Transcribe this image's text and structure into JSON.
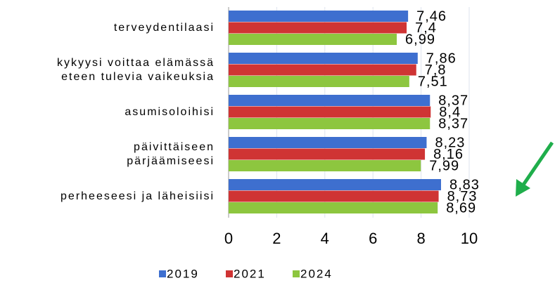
{
  "chart_data": {
    "type": "hbar",
    "categories": [
      "terveydentilaasi",
      "kykyysi voittaa elämässä\neteen tulevia vaikeuksia",
      "asumisoloihisi",
      "päivittäiseen\npärjäämiseesi",
      "perheeseesi ja läheisiisi"
    ],
    "series": [
      {
        "name": "2019",
        "color": "#3e6fcf",
        "values": [
          7.46,
          7.86,
          8.37,
          8.23,
          8.83
        ],
        "value_labels": [
          "7,46",
          "7,86",
          "8,37",
          "8,23",
          "8,83"
        ]
      },
      {
        "name": "2021",
        "color": "#cf3434",
        "values": [
          7.4,
          7.8,
          8.4,
          8.16,
          8.73
        ],
        "value_labels": [
          "7,4",
          "7,8",
          "8,4",
          "8,16",
          "8,73"
        ]
      },
      {
        "name": "2024",
        "color": "#8dc63f",
        "values": [
          6.99,
          7.51,
          8.37,
          7.99,
          8.69
        ],
        "value_labels": [
          "6,99",
          "7,51",
          "8,37",
          "7,99",
          "8,69"
        ]
      }
    ],
    "xlim": [
      0,
      10
    ],
    "xticks": [
      0,
      2,
      4,
      6,
      8,
      10
    ],
    "grid": true,
    "legend": "bottom"
  }
}
